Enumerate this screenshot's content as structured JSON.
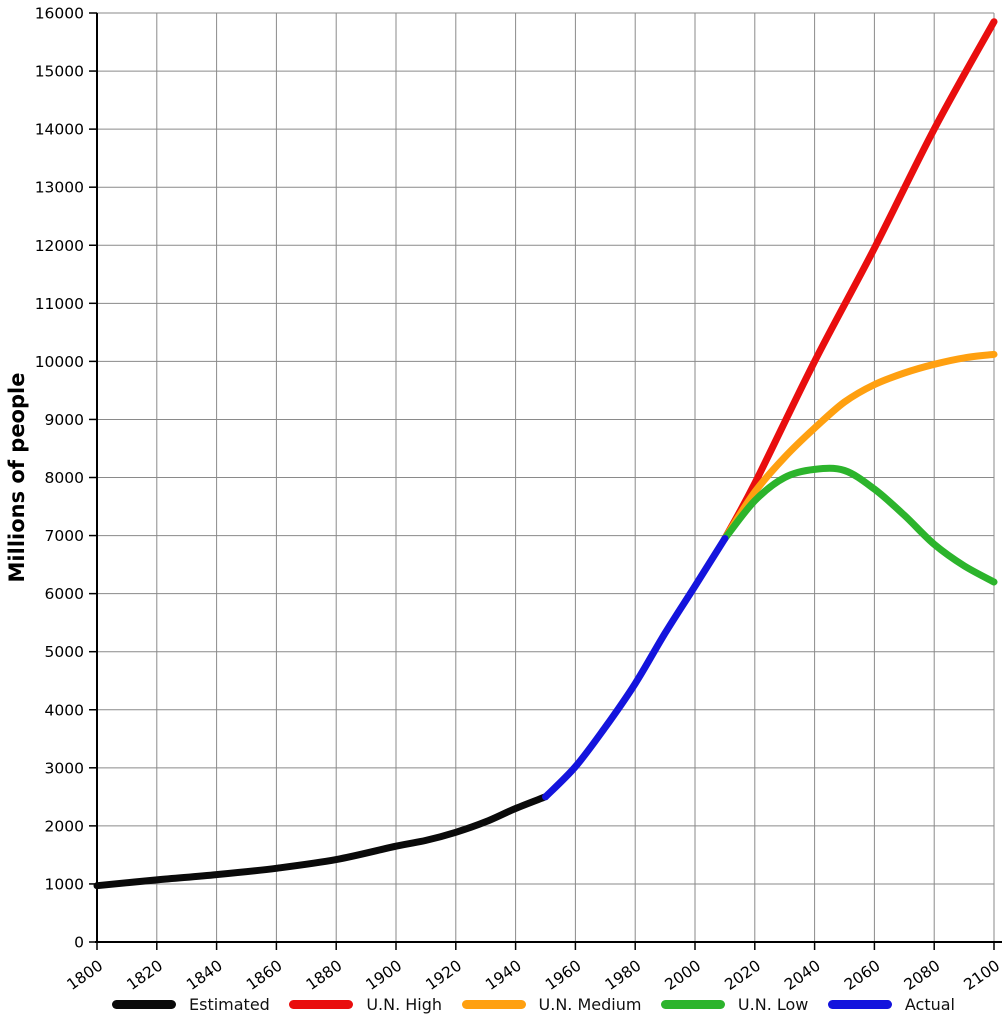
{
  "chart_data": {
    "type": "line",
    "title": "",
    "xlabel": "",
    "ylabel": "Millions of people",
    "xlim": [
      1800,
      2100
    ],
    "ylim": [
      0,
      16000
    ],
    "grid": true,
    "legend_position": "bottom",
    "x_ticks": [
      1800,
      1820,
      1840,
      1860,
      1880,
      1900,
      1920,
      1940,
      1960,
      1980,
      2000,
      2020,
      2040,
      2060,
      2080,
      2100
    ],
    "y_ticks": [
      0,
      1000,
      2000,
      3000,
      4000,
      5000,
      6000,
      7000,
      8000,
      9000,
      10000,
      11000,
      12000,
      13000,
      14000,
      15000,
      16000
    ],
    "series": [
      {
        "name": "Estimated",
        "color": "#0a0a0a",
        "x": [
          1800,
          1820,
          1840,
          1860,
          1880,
          1900,
          1910,
          1920,
          1930,
          1940,
          1950
        ],
        "values": [
          970,
          1070,
          1160,
          1270,
          1420,
          1650,
          1750,
          1890,
          2070,
          2300,
          2500
        ]
      },
      {
        "name": "U.N. High",
        "color": "#e90e0e",
        "x": [
          2010,
          2020,
          2040,
          2060,
          2080,
          2100
        ],
        "values": [
          6950,
          7900,
          10000,
          11950,
          14000,
          15850
        ]
      },
      {
        "name": "U.N. Medium",
        "color": "#ffa010",
        "x": [
          2010,
          2020,
          2030,
          2040,
          2050,
          2060,
          2070,
          2080,
          2090,
          2100
        ],
        "values": [
          6950,
          7750,
          8350,
          8850,
          9300,
          9600,
          9800,
          9950,
          10060,
          10120
        ]
      },
      {
        "name": "U.N. Low",
        "color": "#2cb42c",
        "x": [
          2010,
          2020,
          2030,
          2040,
          2050,
          2060,
          2070,
          2080,
          2090,
          2100
        ],
        "values": [
          6950,
          7600,
          8000,
          8140,
          8120,
          7800,
          7350,
          6850,
          6480,
          6200
        ]
      },
      {
        "name": "Actual",
        "color": "#1414dd",
        "x": [
          1950,
          1960,
          1970,
          1980,
          1990,
          2000,
          2010
        ],
        "values": [
          2500,
          3020,
          3700,
          4450,
          5320,
          6130,
          6950
        ]
      }
    ]
  }
}
